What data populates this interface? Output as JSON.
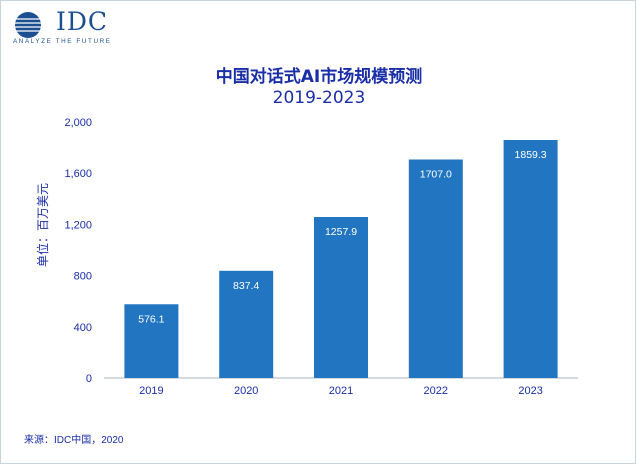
{
  "logo": {
    "wordmark": "IDC",
    "tagline": "ANALYZE THE FUTURE",
    "color": "#1b4f91"
  },
  "source": "来源：IDC中国，2020",
  "chart_data": {
    "type": "bar",
    "title": "中国对话式AI市场规模预测",
    "subtitle": "2019-2023",
    "xlabel": "",
    "ylabel": "单位：百万美元",
    "categories": [
      "2019",
      "2020",
      "2021",
      "2022",
      "2023"
    ],
    "values": [
      576.1,
      837.4,
      1257.9,
      1707.0,
      1859.3
    ],
    "data_labels": [
      "576.1",
      "837.4",
      "1257.9",
      "1707.0",
      "1859.3"
    ],
    "ylim": [
      0,
      2000
    ],
    "yticks": [
      0,
      400,
      800,
      1200,
      1600,
      2000
    ],
    "ytick_labels": [
      "0",
      "400",
      "800",
      "1,200",
      "1,600",
      "2,000"
    ],
    "grid": false,
    "bar_color": "#2276c1",
    "text_color": "#1a2ea8"
  }
}
